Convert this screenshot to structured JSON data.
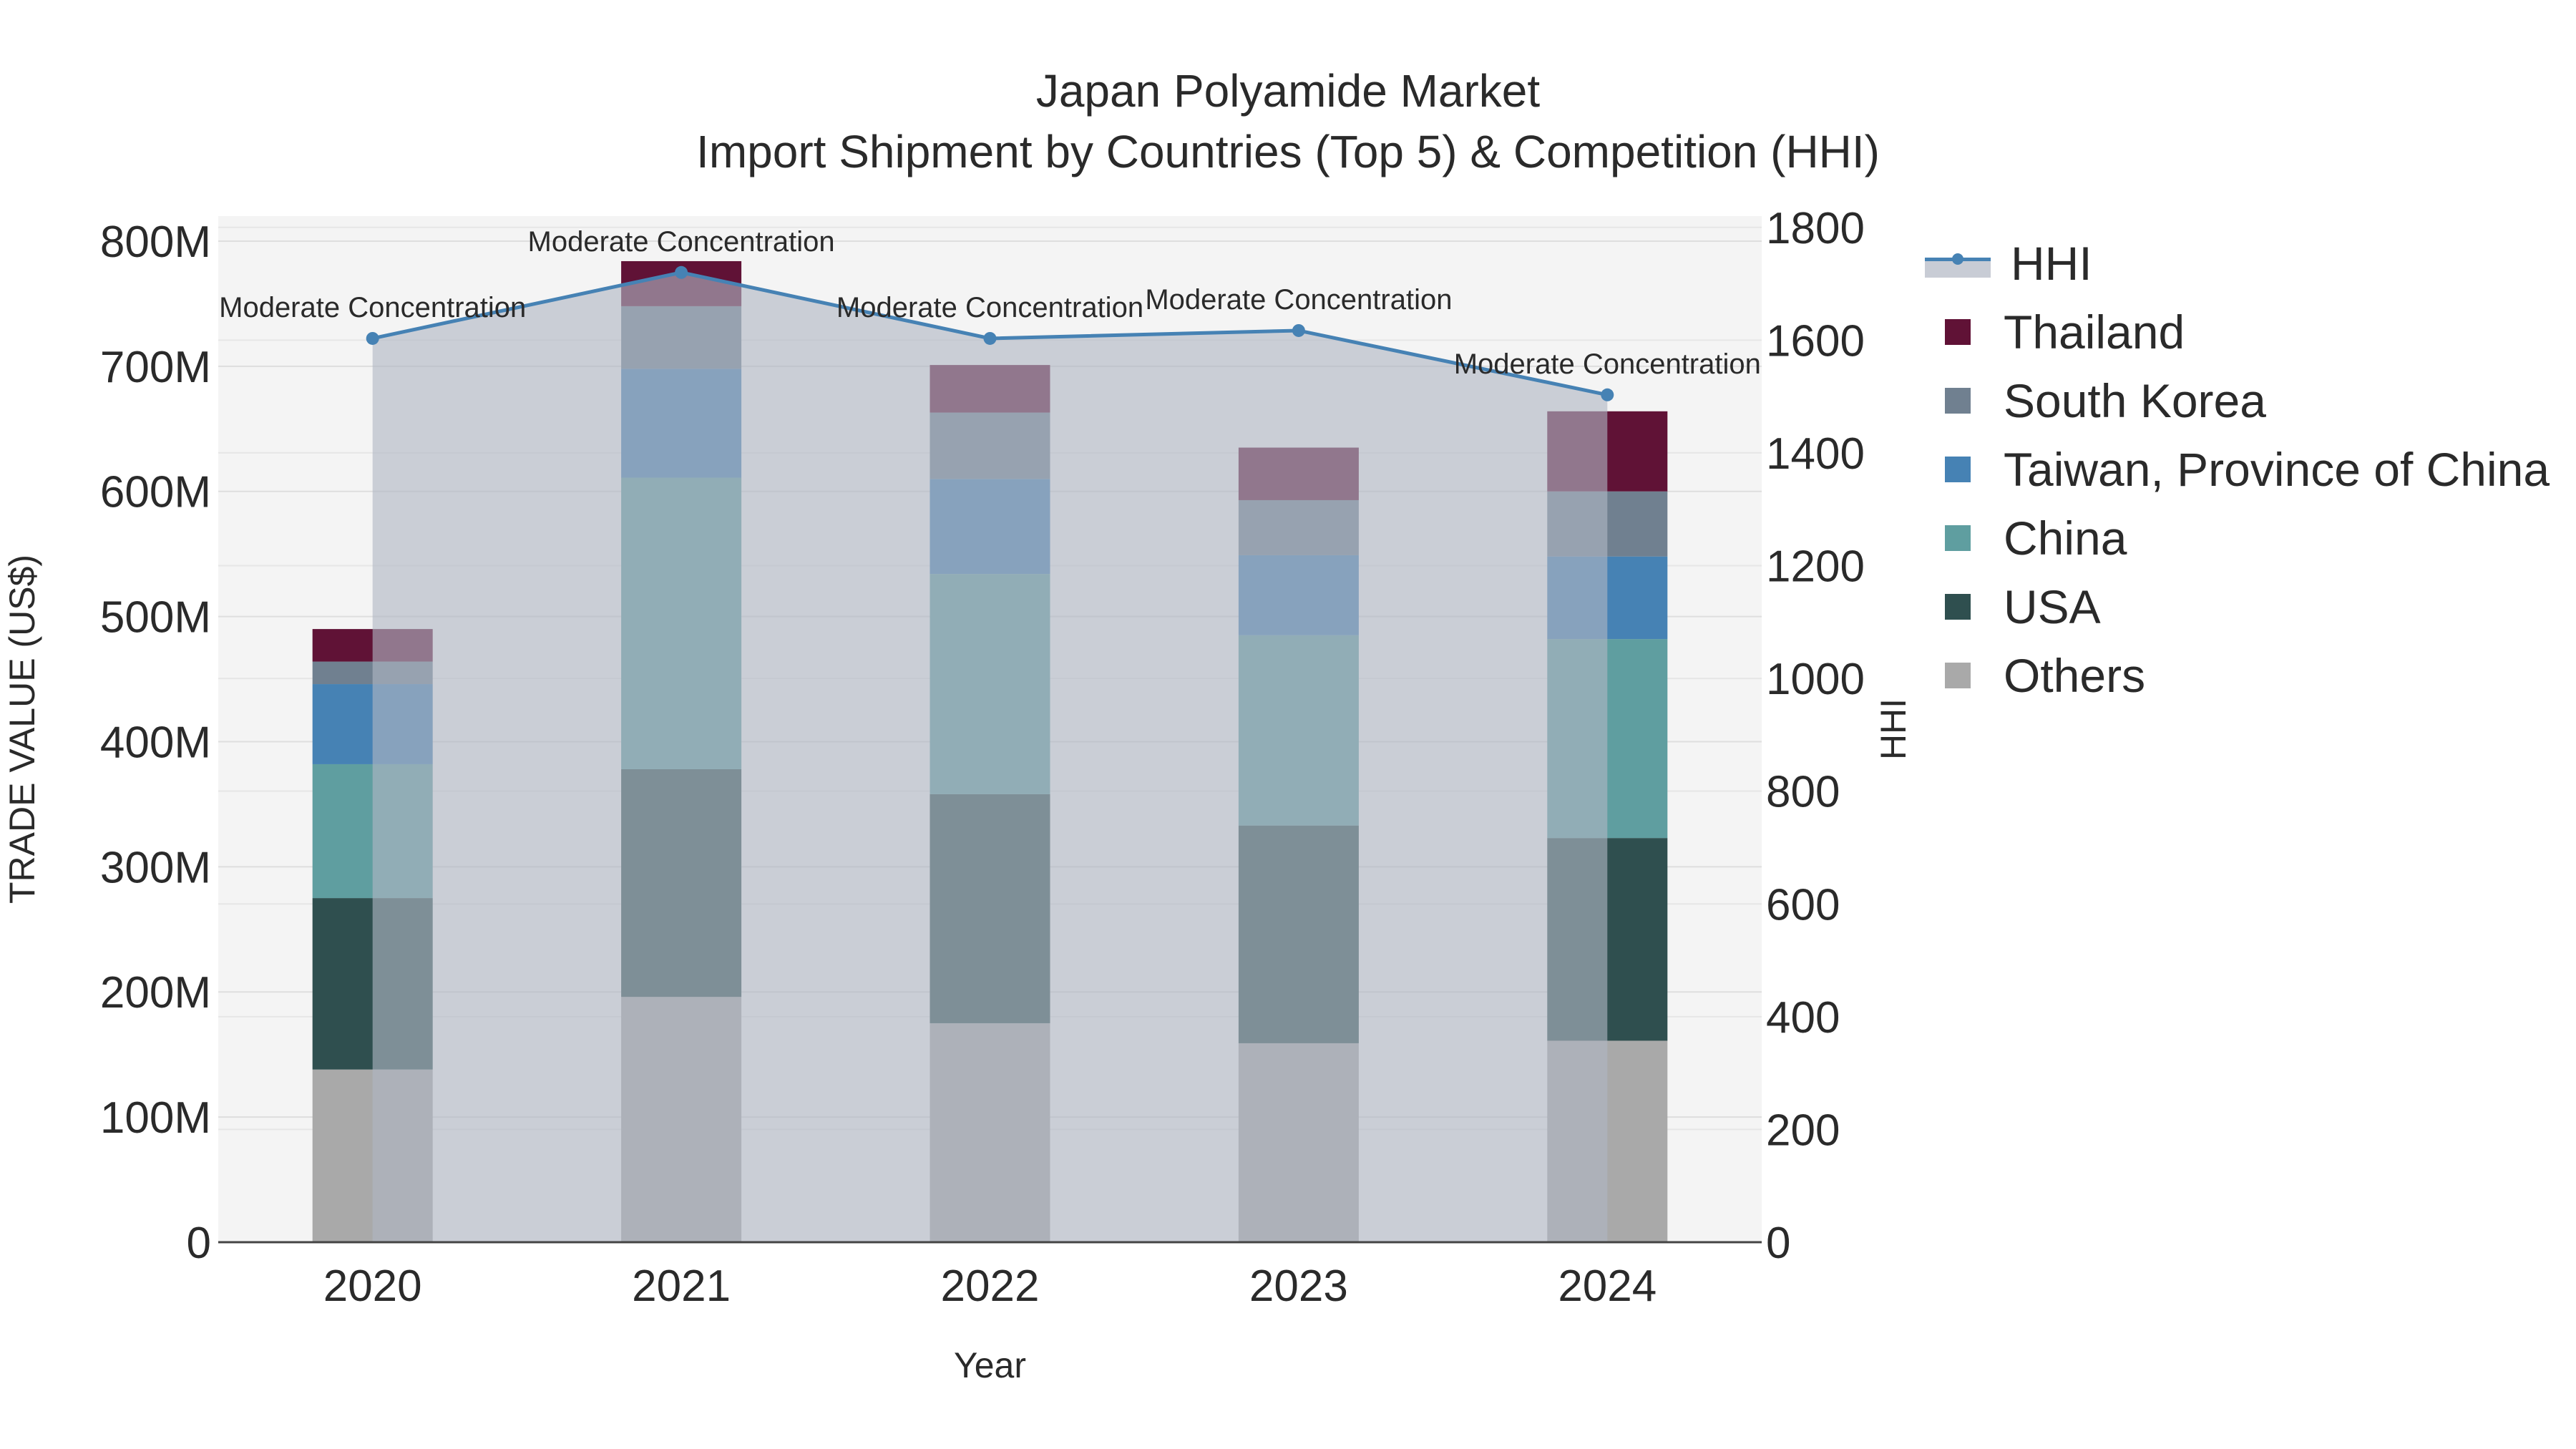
{
  "title": {
    "line1": "Japan Polyamide Market",
    "line2": "Import Shipment by Countries (Top 5) & Competition (HHI)"
  },
  "chart_data": {
    "type": "bar",
    "stacked": true,
    "title": "Japan Polyamide Market — Import Shipment by Countries (Top 5) & Competition (HHI)",
    "xlabel": "Year",
    "ylabel": "TRADE VALUE (US$)",
    "y2label": "HHI",
    "categories": [
      "2020",
      "2021",
      "2022",
      "2023",
      "2024"
    ],
    "ylim": [
      0,
      820000000
    ],
    "y2lim": [
      0,
      1820
    ],
    "yticks": [
      0,
      100000000,
      200000000,
      300000000,
      400000000,
      500000000,
      600000000,
      700000000,
      800000000
    ],
    "ytick_labels": [
      "0",
      "100M",
      "200M",
      "300M",
      "400M",
      "500M",
      "600M",
      "700M",
      "800M"
    ],
    "y2ticks": [
      0,
      200,
      400,
      600,
      800,
      1000,
      1200,
      1400,
      1600,
      1800
    ],
    "y2tick_labels": [
      "0",
      "200",
      "400",
      "600",
      "800",
      "1000",
      "1200",
      "1400",
      "1600",
      "1800"
    ],
    "series": [
      {
        "name": "Others",
        "color": "#a9a9a9",
        "values": [
          138000000,
          196000000,
          175000000,
          159000000,
          161000000
        ]
      },
      {
        "name": "USA",
        "color": "#2f4f4f",
        "values": [
          137000000,
          182000000,
          183000000,
          174000000,
          162000000
        ]
      },
      {
        "name": "China",
        "color": "#5f9ea0",
        "values": [
          107000000,
          233000000,
          176000000,
          152000000,
          159000000
        ]
      },
      {
        "name": "Taiwan, Province of China",
        "color": "#4682b4",
        "values": [
          64000000,
          87000000,
          76000000,
          64000000,
          66000000
        ]
      },
      {
        "name": "South Korea",
        "color": "#708090",
        "values": [
          18000000,
          50000000,
          53000000,
          44000000,
          52000000
        ]
      },
      {
        "name": "Thailand",
        "color": "#601236",
        "values": [
          26000000,
          36000000,
          38000000,
          42000000,
          64000000
        ]
      }
    ],
    "hhi": {
      "name": "HHI",
      "color": "#4682b4",
      "values": [
        1603,
        1720,
        1603,
        1617,
        1503
      ],
      "annotations": [
        "Moderate Concentration",
        "Moderate Concentration",
        "Moderate Concentration",
        "Moderate Concentration",
        "Moderate Concentration"
      ]
    },
    "legend": [
      "HHI",
      "Thailand",
      "South Korea",
      "Taiwan, Province of China",
      "China",
      "USA",
      "Others"
    ]
  }
}
